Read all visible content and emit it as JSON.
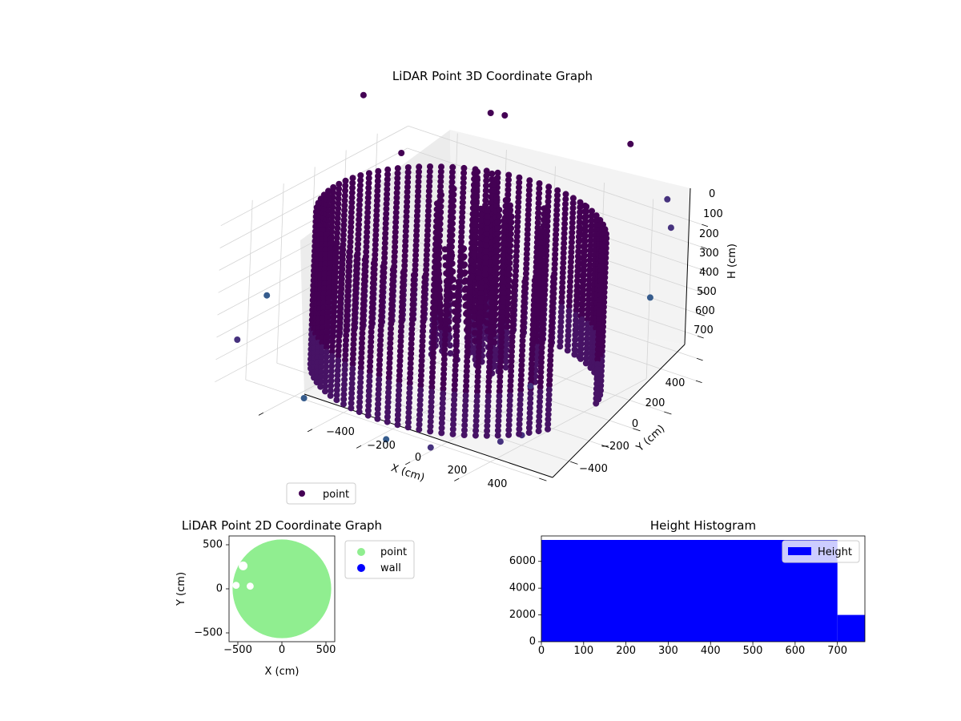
{
  "chart_data": [
    {
      "type": "scatter",
      "title": "LiDAR Point 3D Coordinate Graph",
      "xlabel": "X (cm)",
      "ylabel": "Y (cm)",
      "zlabel": "H (cm)",
      "xticks": [
        "−400",
        "−200",
        "0",
        "200",
        "400"
      ],
      "yticks": [
        "400",
        "200",
        "0",
        "−200",
        "−400"
      ],
      "zticks": [
        "0",
        "100",
        "200",
        "300",
        "400",
        "500",
        "600",
        "700"
      ],
      "legend": [
        "point"
      ],
      "legend_position": "bottom-left",
      "grid": true,
      "note": "Dense cylindrical wall of points, radius about 500 cm, heights 0 to 700 cm, colored by height (viridis); scattered outliers.",
      "colormap": "viridis",
      "series": [
        {
          "name": "point",
          "color": "#440154"
        }
      ]
    },
    {
      "type": "scatter",
      "title": "LiDAR Point 2D Coordinate Graph",
      "xlabel": "X (cm)",
      "ylabel": "Y (cm)",
      "xticks": [
        "−500",
        "0",
        "500"
      ],
      "yticks": [
        "500",
        "0",
        "−500"
      ],
      "xlim": [
        -600,
        600
      ],
      "ylim": [
        -600,
        600
      ],
      "legend_position": "outside-right",
      "series": [
        {
          "name": "point",
          "color": "#90ee90"
        },
        {
          "name": "wall",
          "color": "#0000ff"
        }
      ]
    },
    {
      "type": "bar",
      "title": "Height Histogram",
      "xticks": [
        "0",
        "100",
        "200",
        "300",
        "400",
        "500",
        "600",
        "700"
      ],
      "yticks": [
        "0",
        "2000",
        "4000",
        "6000"
      ],
      "xlim": [
        0,
        765
      ],
      "ylim": [
        0,
        7900
      ],
      "legend_position": "top-right",
      "series": [
        {
          "name": "Height",
          "color": "#0000ff"
        }
      ],
      "bins": [
        {
          "x0": 0,
          "x1": 700,
          "value": 7600
        },
        {
          "x0": 700,
          "x1": 765,
          "value": 2000
        }
      ]
    }
  ]
}
